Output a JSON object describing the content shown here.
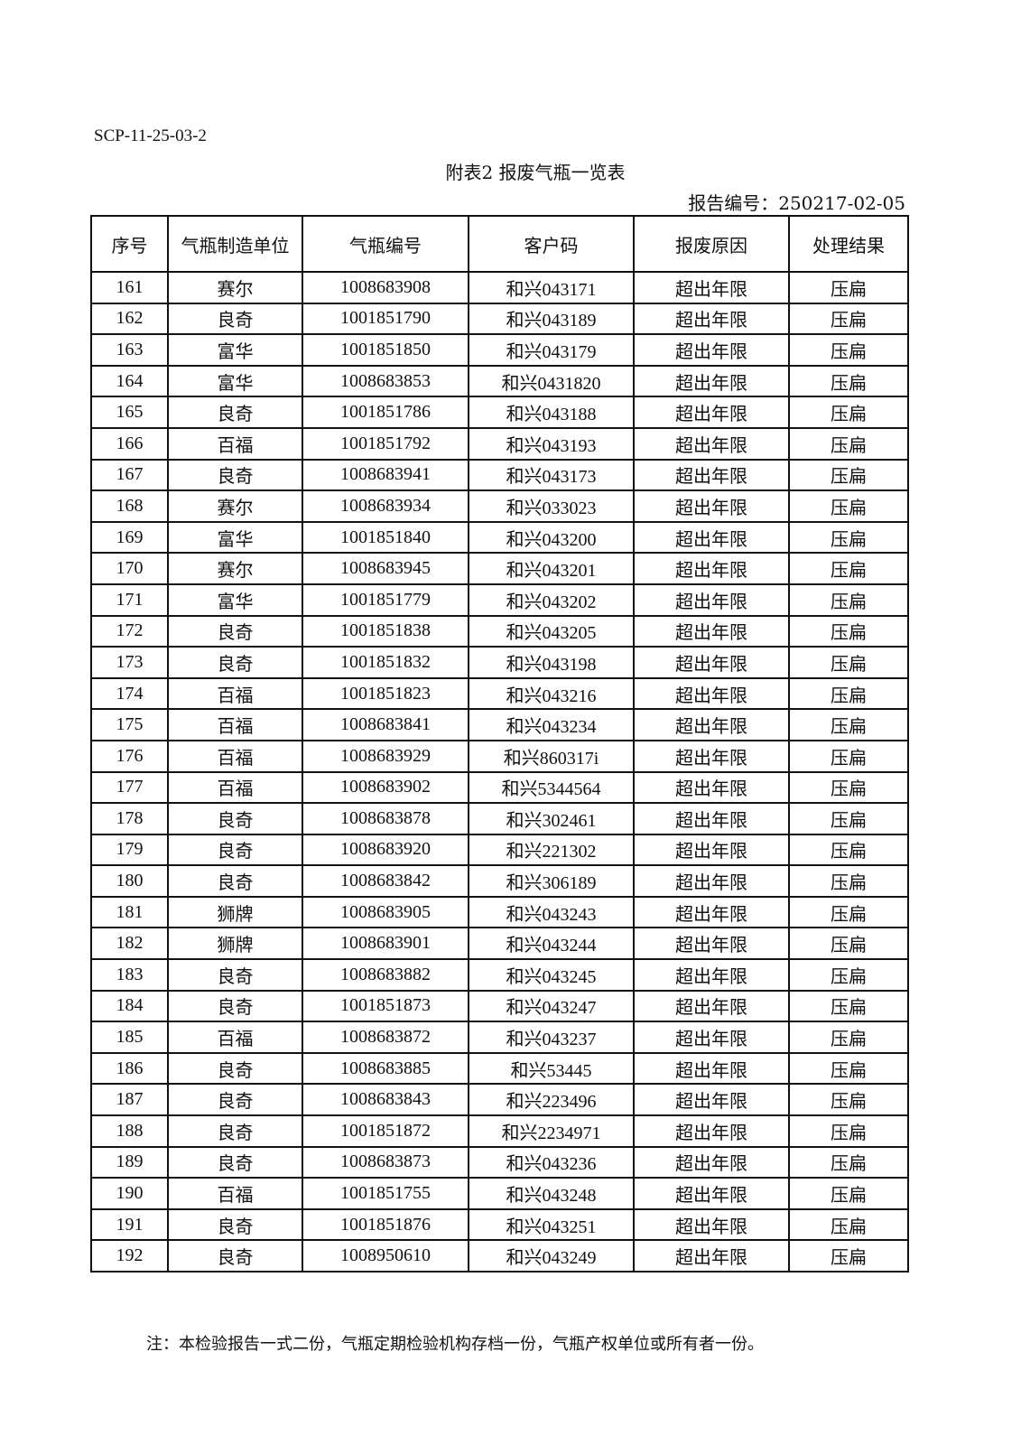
{
  "header": {
    "doc_code": "SCP-11-25-03-2",
    "title": "附表2   报废气瓶一览表",
    "report_no": "报告编号：250217-02-05"
  },
  "table": {
    "columns": [
      "序号",
      "气瓶制造单位",
      "气瓶编号",
      "客户码",
      "报废原因",
      "处理结果"
    ],
    "rows": [
      [
        "161",
        "赛尔",
        "1008683908",
        "和兴043171",
        "超出年限",
        "压扁"
      ],
      [
        "162",
        "良奇",
        "1001851790",
        "和兴043189",
        "超出年限",
        "压扁"
      ],
      [
        "163",
        "富华",
        "1001851850",
        "和兴043179",
        "超出年限",
        "压扁"
      ],
      [
        "164",
        "富华",
        "1008683853",
        "和兴0431820",
        "超出年限",
        "压扁"
      ],
      [
        "165",
        "良奇",
        "1001851786",
        "和兴043188",
        "超出年限",
        "压扁"
      ],
      [
        "166",
        "百福",
        "1001851792",
        "和兴043193",
        "超出年限",
        "压扁"
      ],
      [
        "167",
        "良奇",
        "1008683941",
        "和兴043173",
        "超出年限",
        "压扁"
      ],
      [
        "168",
        "赛尔",
        "1008683934",
        "和兴033023",
        "超出年限",
        "压扁"
      ],
      [
        "169",
        "富华",
        "1001851840",
        "和兴043200",
        "超出年限",
        "压扁"
      ],
      [
        "170",
        "赛尔",
        "1008683945",
        "和兴043201",
        "超出年限",
        "压扁"
      ],
      [
        "171",
        "富华",
        "1001851779",
        "和兴043202",
        "超出年限",
        "压扁"
      ],
      [
        "172",
        "良奇",
        "1001851838",
        "和兴043205",
        "超出年限",
        "压扁"
      ],
      [
        "173",
        "良奇",
        "1001851832",
        "和兴043198",
        "超出年限",
        "压扁"
      ],
      [
        "174",
        "百福",
        "1001851823",
        "和兴043216",
        "超出年限",
        "压扁"
      ],
      [
        "175",
        "百福",
        "1008683841",
        "和兴043234",
        "超出年限",
        "压扁"
      ],
      [
        "176",
        "百福",
        "1008683929",
        "和兴860317i",
        "超出年限",
        "压扁"
      ],
      [
        "177",
        "百福",
        "1008683902",
        "和兴5344564",
        "超出年限",
        "压扁"
      ],
      [
        "178",
        "良奇",
        "1008683878",
        "和兴302461",
        "超出年限",
        "压扁"
      ],
      [
        "179",
        "良奇",
        "1008683920",
        "和兴221302",
        "超出年限",
        "压扁"
      ],
      [
        "180",
        "良奇",
        "1008683842",
        "和兴306189",
        "超出年限",
        "压扁"
      ],
      [
        "181",
        "狮牌",
        "1008683905",
        "和兴043243",
        "超出年限",
        "压扁"
      ],
      [
        "182",
        "狮牌",
        "1008683901",
        "和兴043244",
        "超出年限",
        "压扁"
      ],
      [
        "183",
        "良奇",
        "1008683882",
        "和兴043245",
        "超出年限",
        "压扁"
      ],
      [
        "184",
        "良奇",
        "1001851873",
        "和兴043247",
        "超出年限",
        "压扁"
      ],
      [
        "185",
        "百福",
        "1008683872",
        "和兴043237",
        "超出年限",
        "压扁"
      ],
      [
        "186",
        "良奇",
        "1008683885",
        "和兴53445",
        "超出年限",
        "压扁"
      ],
      [
        "187",
        "良奇",
        "1008683843",
        "和兴223496",
        "超出年限",
        "压扁"
      ],
      [
        "188",
        "良奇",
        "1001851872",
        "和兴2234971",
        "超出年限",
        "压扁"
      ],
      [
        "189",
        "良奇",
        "1008683873",
        "和兴043236",
        "超出年限",
        "压扁"
      ],
      [
        "190",
        "百福",
        "1001851755",
        "和兴043248",
        "超出年限",
        "压扁"
      ],
      [
        "191",
        "良奇",
        "1001851876",
        "和兴043251",
        "超出年限",
        "压扁"
      ],
      [
        "192",
        "良奇",
        "1008950610",
        "和兴043249",
        "超出年限",
        "压扁"
      ]
    ]
  },
  "footer": {
    "note": "注：本检验报告一式二份，气瓶定期检验机构存档一份，气瓶产权单位或所有者一份。"
  }
}
